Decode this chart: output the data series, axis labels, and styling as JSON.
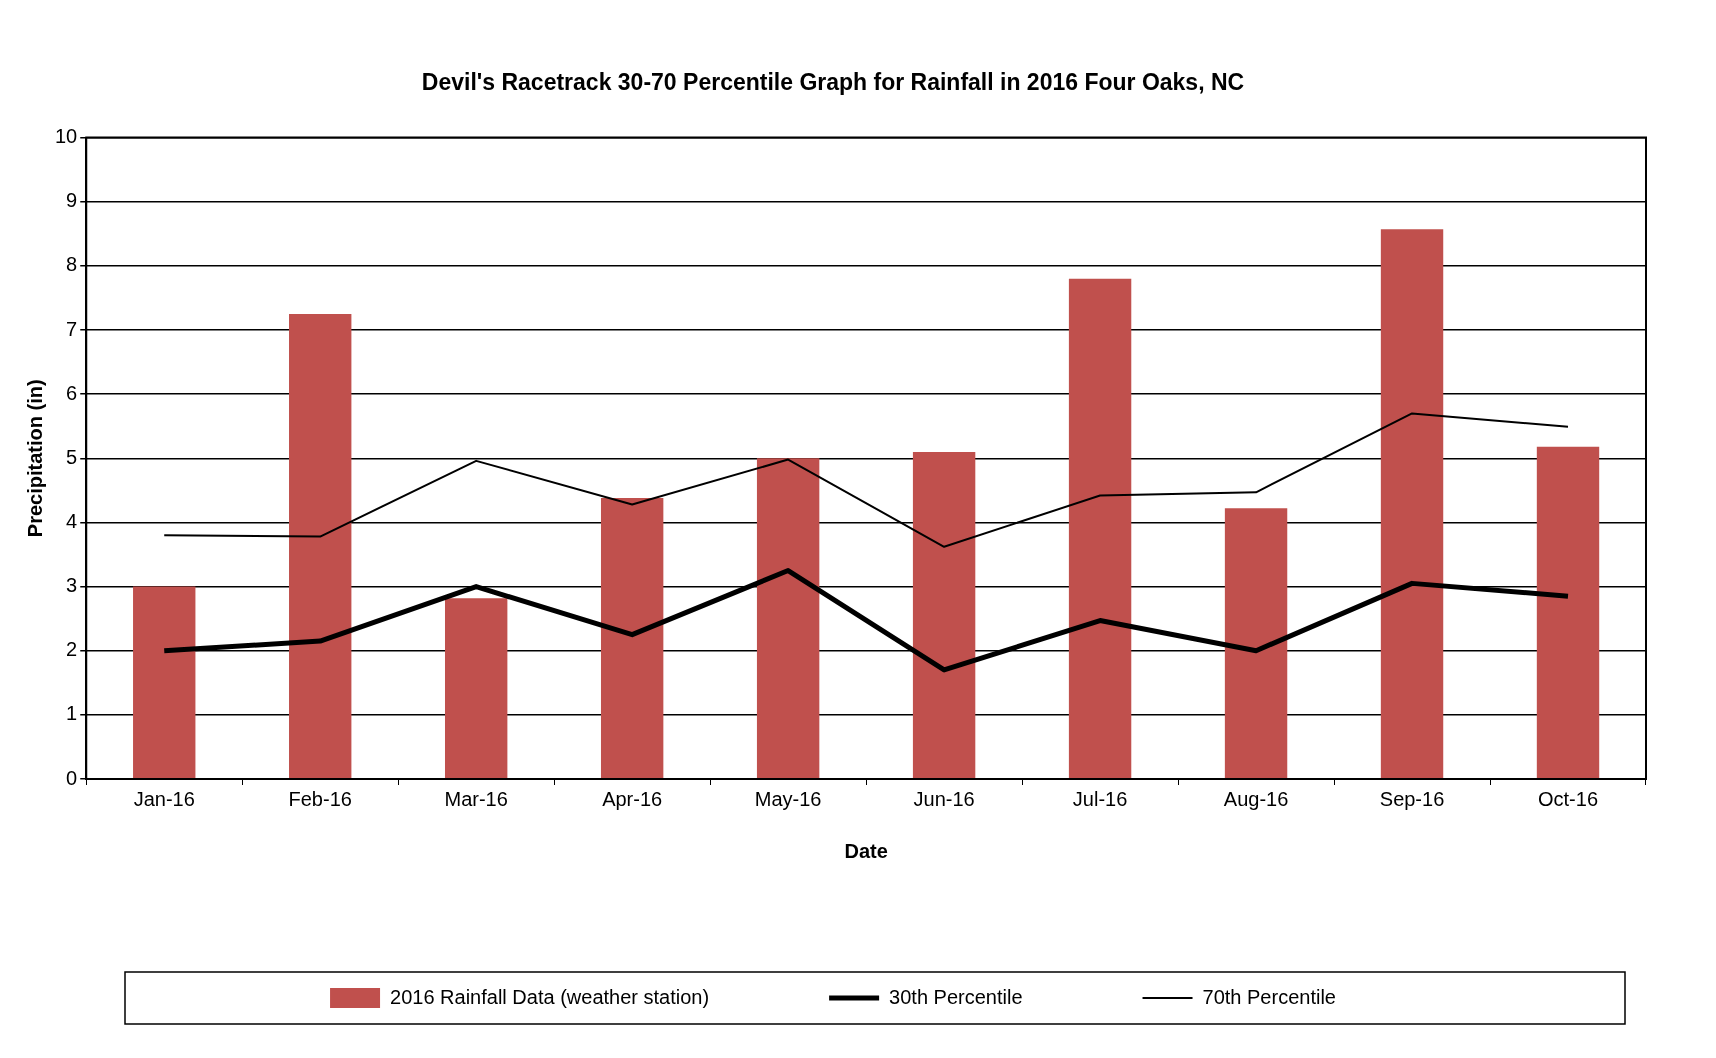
{
  "chart_data": {
    "type": "bar",
    "title": "Devil's Racetrack 30-70 Percentile Graph for Rainfall in 2016 Four Oaks, NC",
    "xlabel": "Date",
    "ylabel": "Precipitation (in)",
    "categories": [
      "Jan-16",
      "Feb-16",
      "Mar-16",
      "Apr-16",
      "May-16",
      "Jun-16",
      "Jul-16",
      "Aug-16",
      "Sep-16",
      "Oct-16"
    ],
    "series": [
      {
        "name": "2016 Rainfall Data (weather station)",
        "color": "#c0504d",
        "values": [
          3.0,
          7.25,
          2.82,
          4.38,
          5.0,
          5.1,
          7.8,
          4.22,
          8.57,
          5.18
        ]
      },
      {
        "name": "30th Percentile",
        "type": "line",
        "color": "#000000",
        "values": [
          2.0,
          2.15,
          3.0,
          2.25,
          3.25,
          1.7,
          2.47,
          2.0,
          3.05,
          2.85
        ]
      },
      {
        "name": "70th Percentile",
        "type": "line",
        "color": "#000000",
        "values": [
          3.8,
          3.78,
          4.96,
          4.28,
          4.98,
          3.62,
          4.42,
          4.47,
          5.7,
          5.49
        ]
      }
    ],
    "ylim": [
      0,
      10
    ],
    "yticks": [
      0,
      1,
      2,
      3,
      4,
      5,
      6,
      7,
      8,
      9,
      10
    ],
    "grid": "y",
    "legend": "bottom",
    "marker": "none",
    "line_style": "solid"
  }
}
